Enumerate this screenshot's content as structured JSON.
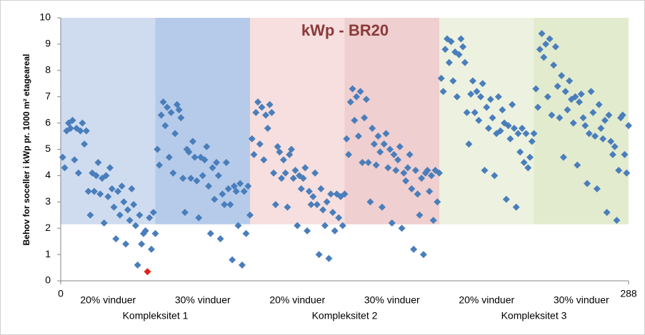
{
  "chart_data": {
    "type": "scatter",
    "title": "kWp - BR20",
    "title_color": "#8b3a3a",
    "y_label": "Behov for soceller i kWp pr. 1000 m² etageareal",
    "xlim": [
      0,
      288
    ],
    "xticks": [
      0,
      288
    ],
    "ylim": [
      0,
      10
    ],
    "yticks": [
      0,
      1,
      2,
      3,
      4,
      5,
      6,
      7,
      8,
      9,
      10
    ],
    "x_labels": [
      {
        "value": 24,
        "label": "20% vinduer"
      },
      {
        "value": 72,
        "label": "30% vinduer"
      },
      {
        "value": 120,
        "label": "20% vinduer"
      },
      {
        "value": 168,
        "label": "30% vinduer"
      },
      {
        "value": 216,
        "label": "20% vinduer"
      },
      {
        "value": 264,
        "label": "30% vinduer"
      }
    ],
    "group_labels": [
      {
        "value": 48,
        "label": "Kompleksitet 1"
      },
      {
        "value": 144,
        "label": "Kompleksitet 2"
      },
      {
        "value": 240,
        "label": "Kompleksitet 3"
      }
    ],
    "bands": [
      {
        "x": [
          0,
          48
        ],
        "y": [
          2.15,
          10
        ],
        "color": "#cfdcf0"
      },
      {
        "x": [
          48,
          96
        ],
        "y": [
          2.15,
          10
        ],
        "color": "#b6cbea"
      },
      {
        "x": [
          96,
          144
        ],
        "y": [
          2.15,
          10
        ],
        "color": "#f6dfde"
      },
      {
        "x": [
          144,
          192
        ],
        "y": [
          2.15,
          10
        ],
        "color": "#efcfcf"
      },
      {
        "x": [
          192,
          240
        ],
        "y": [
          2.15,
          10
        ],
        "color": "#ecf2df"
      },
      {
        "x": [
          240,
          288
        ],
        "y": [
          2.15,
          10
        ],
        "color": "#e2ebce"
      }
    ],
    "series": [
      {
        "color": "#4a7ebb",
        "x": [
          1,
          2,
          3,
          4,
          5,
          6,
          7,
          8,
          9,
          10,
          11,
          12,
          13,
          14,
          15,
          16,
          17,
          18,
          19,
          20,
          21,
          22,
          23,
          24,
          25,
          26,
          27,
          28,
          29,
          30,
          31,
          32,
          33,
          34,
          35,
          36,
          37,
          38,
          39,
          40,
          41,
          42,
          43,
          44,
          45,
          46,
          47,
          48,
          49,
          50,
          51,
          52,
          53,
          54,
          55,
          56,
          57,
          58,
          59,
          60,
          61,
          62,
          63,
          64,
          65,
          66,
          67,
          68,
          69,
          70,
          71,
          72,
          73,
          74,
          75,
          76,
          77,
          78,
          79,
          80,
          81,
          82,
          83,
          84,
          85,
          86,
          87,
          88,
          89,
          90,
          91,
          92,
          93,
          94,
          95,
          96,
          97,
          98,
          99,
          100,
          101,
          102,
          103,
          104,
          105,
          106,
          107,
          108,
          109,
          110,
          111,
          112,
          113,
          114,
          115,
          116,
          117,
          118,
          119,
          120,
          121,
          122,
          123,
          124,
          125,
          126,
          127,
          128,
          129,
          130,
          131,
          132,
          133,
          134,
          135,
          136,
          137,
          138,
          139,
          140,
          141,
          142,
          143,
          144,
          145,
          146,
          147,
          148,
          149,
          150,
          151,
          152,
          153,
          154,
          155,
          156,
          157,
          158,
          159,
          160,
          161,
          162,
          163,
          164,
          165,
          166,
          167,
          168,
          169,
          170,
          171,
          172,
          173,
          174,
          175,
          176,
          177,
          178,
          179,
          180,
          181,
          182,
          183,
          184,
          185,
          186,
          187,
          188,
          189,
          190,
          191,
          192,
          193,
          194,
          195,
          196,
          197,
          198,
          199,
          200,
          201,
          202,
          203,
          204,
          205,
          206,
          207,
          208,
          209,
          210,
          211,
          212,
          213,
          214,
          215,
          216,
          217,
          218,
          219,
          220,
          221,
          222,
          223,
          224,
          225,
          226,
          227,
          228,
          229,
          230,
          231,
          232,
          233,
          234,
          235,
          236,
          237,
          238,
          239,
          240,
          241,
          242,
          243,
          244,
          245,
          246,
          247,
          248,
          249,
          250,
          251,
          252,
          253,
          254,
          255,
          256,
          257,
          258,
          259,
          260,
          261,
          262,
          263,
          264,
          265,
          266,
          267,
          268,
          269,
          270,
          271,
          272,
          273,
          274,
          275,
          276,
          277,
          278,
          279,
          280,
          281,
          282,
          283,
          284,
          285,
          286,
          287,
          288
        ],
        "values": [
          4.7,
          4.3,
          5.7,
          6.0,
          5.8,
          6.1,
          4.6,
          5.8,
          4.1,
          5.7,
          6.0,
          5.2,
          5.7,
          3.4,
          2.5,
          4.1,
          3.4,
          4.0,
          4.5,
          3.3,
          3.9,
          2.2,
          4.0,
          3.2,
          4.3,
          3.5,
          2.8,
          1.6,
          3.4,
          2.5,
          3.6,
          3.0,
          1.4,
          2.7,
          2.3,
          3.5,
          2.9,
          2.1,
          0.6,
          2.5,
          1.4,
          1.8,
          1.9,
          null,
          2.4,
          1.2,
          2.6,
          1.8,
          5.0,
          4.4,
          6.3,
          6.8,
          5.9,
          6.6,
          4.7,
          6.4,
          4.1,
          5.6,
          6.7,
          6.5,
          6.2,
          3.9,
          2.6,
          5.0,
          4.9,
          3.9,
          5.3,
          4.7,
          3.8,
          2.4,
          4.7,
          4.0,
          4.6,
          5.1,
          3.6,
          1.8,
          4.3,
          3.1,
          4.5,
          4.0,
          1.6,
          3.3,
          2.9,
          4.5,
          3.5,
          2.9,
          0.8,
          3.6,
          3.4,
          2.1,
          3.7,
          0.6,
          3.4,
          1.8,
          3.6,
          2.5,
          5.4,
          4.8,
          6.4,
          6.8,
          5.2,
          6.6,
          4.6,
          6.3,
          5.8,
          6.7,
          6.4,
          4.1,
          2.9,
          5.1,
          4.9,
          3.9,
          4.6,
          4.1,
          2.8,
          4.8,
          5.0,
          3.9,
          4.2,
          2.1,
          4.0,
          3.5,
          3.9,
          4.3,
          1.9,
          3.4,
          2.9,
          3.2,
          4.1,
          2.9,
          1.0,
          3.5,
          2.7,
          2.1,
          3.0,
          0.85,
          3.3,
          2.6,
          1.9,
          3.3,
          2.4,
          3.2,
          2.1,
          3.3,
          5.4,
          4.8,
          6.8,
          7.3,
          6.1,
          7.0,
          5.5,
          7.2,
          4.5,
          6.2,
          6.9,
          4.5,
          3.0,
          5.8,
          5.2,
          4.4,
          5.5,
          4.9,
          2.8,
          5.2,
          5.6,
          4.3,
          5.0,
          2.2,
          4.8,
          4.2,
          4.6,
          5.1,
          2.0,
          4.1,
          3.8,
          4.3,
          4.8,
          3.5,
          1.2,
          4.2,
          3.3,
          2.5,
          3.9,
          1.0,
          4.1,
          4.2,
          3.4,
          4.0,
          2.3,
          4.2,
          3.0,
          4.1,
          7.7,
          7.2,
          8.8,
          9.2,
          8.3,
          9.1,
          7.6,
          8.7,
          7.0,
          8.6,
          9.2,
          8.9,
          8.3,
          6.4,
          5.2,
          7.1,
          7.6,
          6.4,
          7.2,
          6.1,
          7.0,
          7.5,
          4.2,
          6.6,
          5.8,
          6.9,
          6.2,
          4.0,
          5.6,
          7.0,
          5.7,
          6.5,
          6.0,
          3.1,
          5.9,
          5.4,
          6.7,
          5.8,
          2.8,
          5.6,
          4.9,
          5.8,
          4.5,
          5.6,
          4.3,
          4.7,
          5.3,
          5.6,
          7.3,
          6.6,
          8.8,
          9.4,
          8.5,
          9.0,
          7.0,
          9.2,
          6.3,
          8.2,
          8.9,
          7.4,
          6.2,
          7.8,
          4.7,
          7.2,
          6.5,
          7.6,
          6.9,
          6.0,
          7.0,
          4.4,
          6.8,
          7.1,
          6.2,
          5.9,
          3.7,
          5.6,
          7.2,
          6.4,
          5.5,
          3.5,
          6.7,
          5.8,
          5.4,
          6.1,
          2.6,
          6.3,
          5.3,
          4.8,
          5.1,
          2.3,
          4.2,
          6.2,
          6.3,
          4.8,
          4.1,
          5.9
        ]
      },
      {
        "color": "#e3201b",
        "x": [
          44
        ],
        "values": [
          0.35
        ]
      }
    ]
  }
}
